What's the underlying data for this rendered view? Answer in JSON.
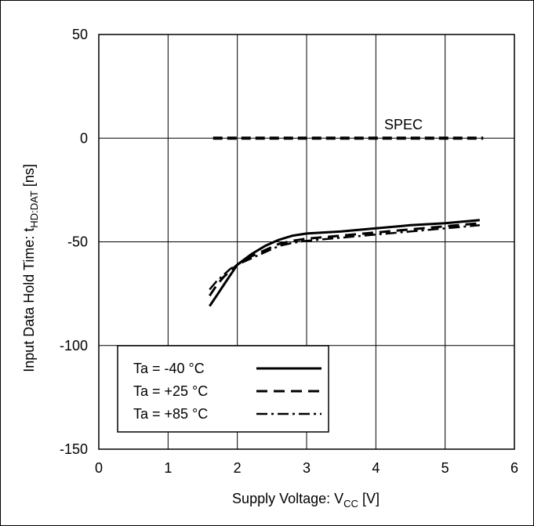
{
  "chart_data": {
    "type": "line",
    "xlabel": "Supply Voltage: V",
    "xlabel_sub": "CC",
    "xlabel_unit": " [V]",
    "ylabel": "Input Data Hold Time: t",
    "ylabel_sub": "HD:DAT",
    "ylabel_unit": " [ns]",
    "xlim": [
      0,
      6
    ],
    "ylim": [
      -150,
      50
    ],
    "xticks": [
      0,
      1,
      2,
      3,
      4,
      5,
      6
    ],
    "yticks": [
      50,
      0,
      -50,
      -100,
      -150
    ],
    "grid": true,
    "legend_position": "bottom-left",
    "series": [
      {
        "name": "Ta = -40 °C",
        "style": "solid",
        "x": [
          1.6,
          1.7,
          1.8,
          1.9,
          2.0,
          2.2,
          2.4,
          2.6,
          2.8,
          3.0,
          3.5,
          4.0,
          4.5,
          5.0,
          5.5
        ],
        "y": [
          -81,
          -76,
          -71,
          -66,
          -61,
          -56,
          -52,
          -49,
          -47,
          -46,
          -45,
          -43.5,
          -42,
          -41,
          -39.5
        ]
      },
      {
        "name": "Ta = +25 °C",
        "style": "dashed",
        "x": [
          1.6,
          1.7,
          1.8,
          1.9,
          2.0,
          2.2,
          2.4,
          2.6,
          2.8,
          3.0,
          3.5,
          4.0,
          4.5,
          5.0,
          5.5
        ],
        "y": [
          -76,
          -71,
          -67,
          -64,
          -61,
          -57,
          -54,
          -51,
          -49.5,
          -48.5,
          -47,
          -45.5,
          -44,
          -42.5,
          -41
        ]
      },
      {
        "name": "Ta = +85 °C",
        "style": "dashdot",
        "x": [
          1.6,
          1.7,
          1.8,
          1.9,
          2.0,
          2.2,
          2.4,
          2.6,
          2.8,
          3.0,
          3.5,
          4.0,
          4.5,
          5.0,
          5.5
        ],
        "y": [
          -73,
          -69,
          -66,
          -63,
          -61,
          -58,
          -55,
          -52,
          -50.5,
          -49.5,
          -48,
          -46.5,
          -45,
          -43.5,
          -42
        ]
      }
    ],
    "spec": {
      "label": "SPEC",
      "x": [
        1.65,
        5.55
      ],
      "y": 0
    }
  }
}
